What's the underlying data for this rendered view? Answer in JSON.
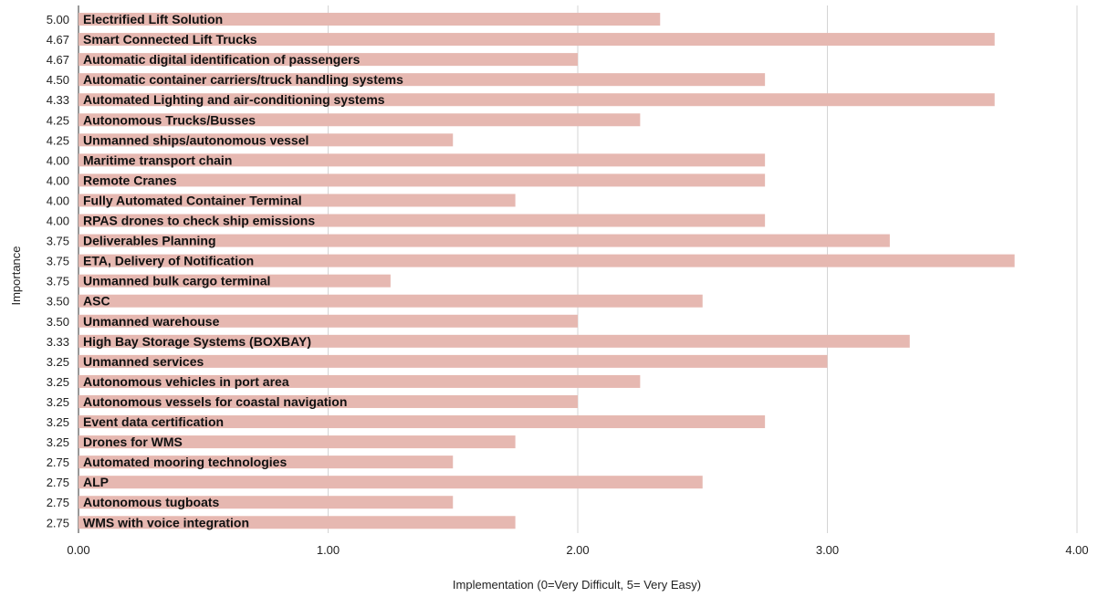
{
  "chart_data": {
    "type": "bar",
    "orientation": "horizontal",
    "xlabel": "Implementation (0=Very Difficult, 5= Very Easy)",
    "ylabel": "Importance",
    "xlim": [
      0,
      4
    ],
    "x_ticks": [
      "0.00",
      "1.00",
      "2.00",
      "3.00",
      "4.00"
    ],
    "grid": true,
    "bar_color": "#e6b8b1",
    "categories": [
      "Electrified Lift Solution",
      "Smart Connected Lift Trucks",
      "Automatic digital identification of passengers",
      "Automatic container carriers/truck handling systems",
      "Automated Lighting and air-conditioning systems",
      "Autonomous Trucks/Busses",
      "Unmanned ships/autonomous vessel",
      "Maritime transport chain",
      "Remote Cranes",
      "Fully Automated Container Terminal",
      "RPAS drones  to check ship emissions",
      "Deliverables Planning",
      "ETA, Delivery of Notification",
      "Unmanned bulk cargo terminal",
      "ASC",
      "Unmanned warehouse",
      "High Bay Storage Systems (BOXBAY)",
      "Unmanned services",
      "Autonomous vehicles in port area",
      "Autonomous vessels for coastal navigation",
      "Event data certification",
      "Drones for WMS",
      "Automated mooring technologies",
      "ALP",
      "Autonomous tugboats",
      "WMS with voice integration"
    ],
    "importance": [
      "5.00",
      "4.67",
      "4.67",
      "4.50",
      "4.33",
      "4.25",
      "4.25",
      "4.00",
      "4.00",
      "4.00",
      "4.00",
      "3.75",
      "3.75",
      "3.75",
      "3.50",
      "3.50",
      "3.33",
      "3.25",
      "3.25",
      "3.25",
      "3.25",
      "3.25",
      "2.75",
      "2.75",
      "2.75",
      "2.75"
    ],
    "values": [
      2.33,
      3.67,
      2.0,
      2.75,
      3.67,
      2.25,
      1.5,
      2.75,
      2.75,
      1.75,
      2.75,
      3.25,
      3.75,
      1.25,
      2.5,
      2.0,
      3.33,
      3.0,
      2.25,
      2.0,
      2.75,
      1.75,
      1.5,
      2.5,
      1.5,
      1.75
    ]
  }
}
